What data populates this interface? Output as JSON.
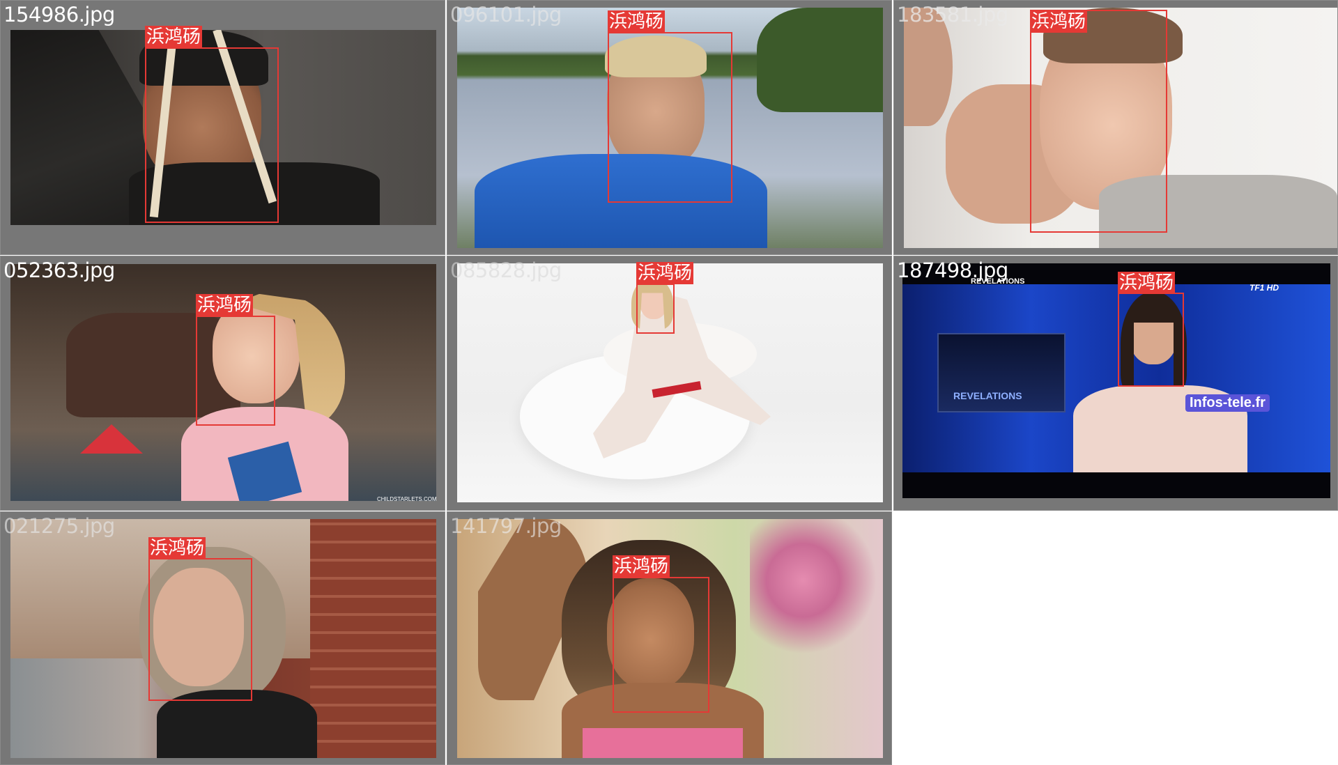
{
  "images": [
    {
      "filename": "154986.jpg",
      "label": "浜鸿砀"
    },
    {
      "filename": "096101.jpg",
      "label": "浜鸿砀"
    },
    {
      "filename": "183581.jpg",
      "label": "浜鸿砀"
    },
    {
      "filename": "052363.jpg",
      "label": "浜鸿砀",
      "watermark": "CHILDSTARLETS.COM"
    },
    {
      "filename": "085828.jpg",
      "label": "浜鸿砀"
    },
    {
      "filename": "187498.jpg",
      "label": "浜鸿砀",
      "overlay_top": "REVELATIONS",
      "overlay_logo": "TF1 HD",
      "overlay_screen": "REVELATIONS",
      "overlay_watermark": "Infos-tele.fr"
    },
    {
      "filename": "021275.jpg",
      "label": "浜鸿砀"
    },
    {
      "filename": "141797.jpg",
      "label": "浜鸿砀"
    }
  ],
  "colors": {
    "grid_bg": "#777777",
    "box": "#e53935",
    "tag_bg": "#e53935",
    "tag_text": "#ffffff",
    "filename_text": "#ffffff"
  }
}
